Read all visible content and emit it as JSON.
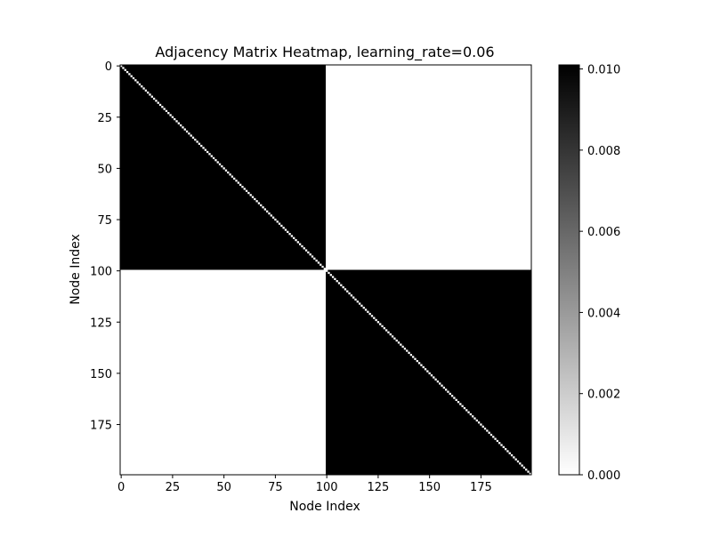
{
  "chart_data": {
    "type": "heatmap",
    "title": "Adjacency Matrix Heatmap, learning_rate=0.06",
    "xlabel": "Node Index",
    "ylabel": "Node Index",
    "n_nodes": 200,
    "blocks": [
      {
        "rows": [
          0,
          100
        ],
        "cols": [
          0,
          100
        ],
        "value": 0.0101
      },
      {
        "rows": [
          0,
          100
        ],
        "cols": [
          100,
          200
        ],
        "value": 0.0
      },
      {
        "rows": [
          100,
          200
        ],
        "cols": [
          0,
          100
        ],
        "value": 0.0
      },
      {
        "rows": [
          100,
          200
        ],
        "cols": [
          100,
          200
        ],
        "value": 0.0101
      }
    ],
    "diagonal_value": 0.0,
    "x_ticks": [
      0,
      25,
      50,
      75,
      100,
      125,
      150,
      175
    ],
    "y_ticks": [
      0,
      25,
      50,
      75,
      100,
      125,
      150,
      175
    ],
    "colorbar": {
      "min": 0.0,
      "max": 0.0101,
      "ticks": [
        0.0,
        0.002,
        0.004,
        0.006,
        0.008,
        0.01
      ],
      "tick_labels": [
        "0.000",
        "0.002",
        "0.004",
        "0.006",
        "0.008",
        "0.010"
      ],
      "colormap": "Greys",
      "low_color": "#ffffff",
      "high_color": "#000000"
    }
  }
}
